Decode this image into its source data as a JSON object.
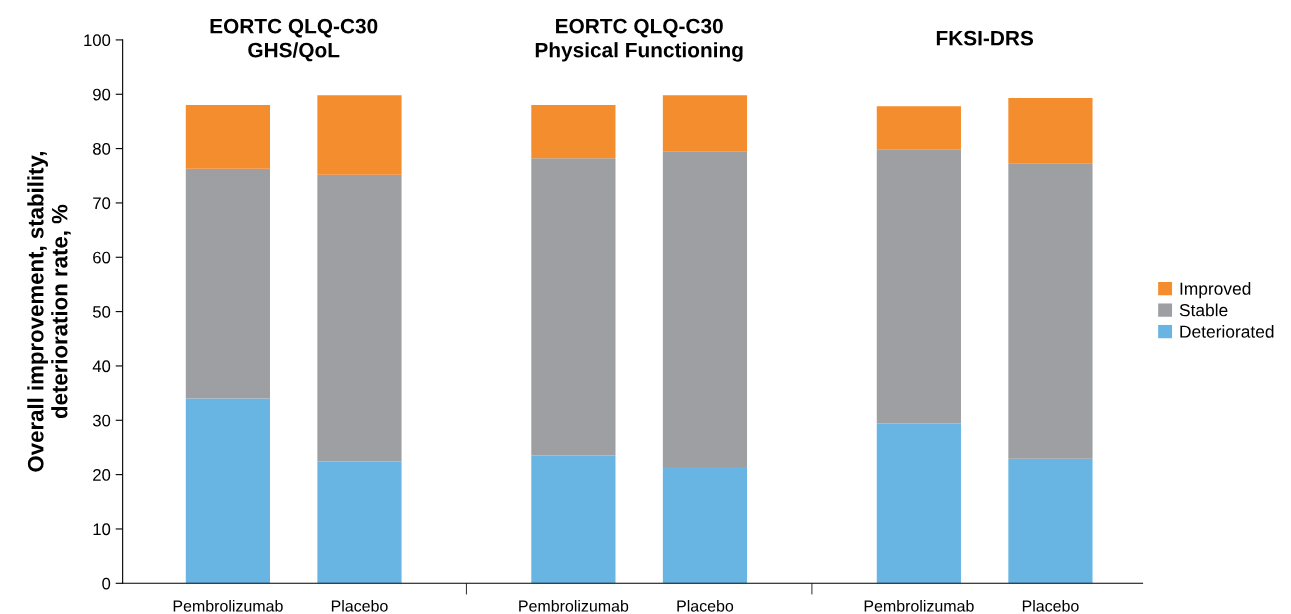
{
  "chart_data": {
    "type": "bar",
    "stacked": true,
    "ylabel": "Overall improvement, stability,\ndeterioration rate, %",
    "categories": [
      "Pembrolizumab",
      "Placebo",
      "Pembrolizumab",
      "Placebo",
      "Pembrolizumab",
      "Placebo"
    ],
    "series": [
      {
        "name": "Deteriorated",
        "color": "#68b5e4",
        "values": [
          34.0,
          22.4,
          23.5,
          21.4,
          29.4,
          22.9
        ]
      },
      {
        "name": "Stable",
        "color": "#9d9fa2",
        "values": [
          42.3,
          52.8,
          54.7,
          58.1,
          50.5,
          54.4
        ]
      },
      {
        "name": "Improved",
        "color": "#f48d2d",
        "values": [
          11.7,
          14.6,
          9.8,
          10.3,
          7.9,
          12.0
        ]
      }
    ],
    "annotations": [
      "EORTC QLQ-C30\nGHS/QoL",
      "EORTC QLQ-C30\nPhysical Functioning",
      "FKSI-DRS"
    ],
    "ylim": [
      0,
      100
    ],
    "yticks": [
      0,
      10,
      20,
      30,
      40,
      50,
      60,
      70,
      80,
      90,
      100
    ],
    "grid": false,
    "legend": "right"
  }
}
